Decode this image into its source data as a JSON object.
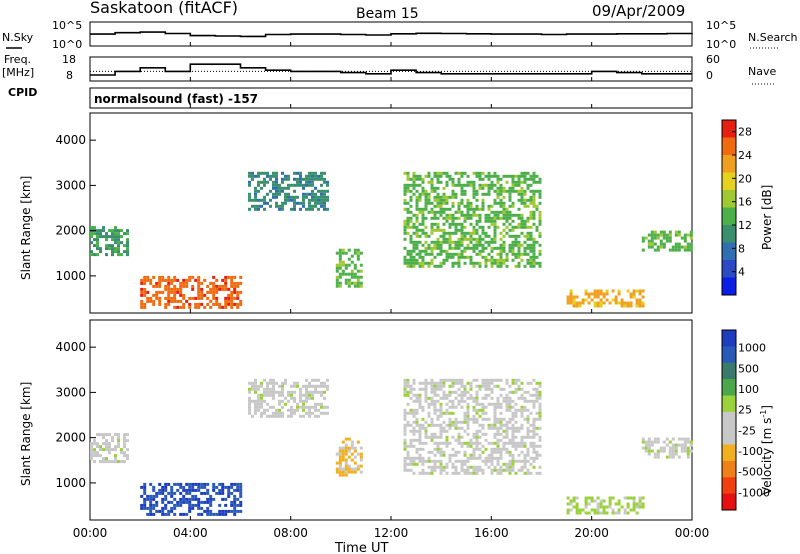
{
  "header": {
    "station": "Saskatoon (fitACF)",
    "beam": "Beam 15",
    "date": "09/Apr/2009"
  },
  "left_labels": {
    "nsky": "N.Sky",
    "freq_l1": "Freq.",
    "freq_l2": "[MHz]",
    "cpid": "CPID"
  },
  "right_labels": {
    "nsearch": "N.Search",
    "nave": "Nave"
  },
  "cpid_text": "normalsound (fast) -157",
  "noise_panel": {
    "yticks_left": [
      "10^5",
      "10^0"
    ],
    "yticks_right": [
      "10^5",
      "10^0"
    ]
  },
  "freq_panel": {
    "yticks_left": [
      "18",
      "8"
    ],
    "yticks_right": [
      "60",
      "0"
    ]
  },
  "x_axis": {
    "label": "Time UT",
    "ticks": [
      "00:00",
      "04:00",
      "08:00",
      "12:00",
      "16:00",
      "20:00",
      "00:00"
    ]
  },
  "y_axis": {
    "label": "Slant Range [km]",
    "ticks": [
      "4000",
      "3000",
      "2000",
      "1000"
    ]
  },
  "power_colorbar": {
    "label": "Power [dB]",
    "ticks": [
      "28",
      "24",
      "20",
      "16",
      "12",
      "8",
      "4"
    ],
    "colors": [
      "#0a1ee6",
      "#2a49c4",
      "#2f6eb0",
      "#3a8f6e",
      "#4caf4a",
      "#9fc832",
      "#e4d21e",
      "#f0a020",
      "#f06a10",
      "#e62010"
    ]
  },
  "velocity_colorbar": {
    "label": "Velocity [m s",
    "label_sup": "-1",
    "label_end": "]",
    "ticks": [
      "1000",
      "500",
      "100",
      "25",
      "-25",
      "-100",
      "-500",
      "-1000"
    ],
    "colors": [
      "#1e3cbe",
      "#2a5ab8",
      "#3a7a6a",
      "#4aa84a",
      "#9ad23c",
      "#c8c8c8",
      "#c8c8c8",
      "#f0b020",
      "#f08018",
      "#f04010",
      "#e61010"
    ]
  },
  "chart_data": [
    {
      "type": "line",
      "title": "N.Sky / N.Search",
      "x": "time_ut_hours",
      "xlim": [
        0,
        24
      ],
      "ylog": true,
      "ylim": [
        1,
        100000
      ],
      "series": [
        {
          "name": "N.Sky",
          "x": [
            0,
            1,
            2,
            3,
            4,
            5,
            6,
            7,
            8,
            9,
            10,
            11,
            12,
            13,
            14,
            15,
            16,
            17,
            18,
            19,
            20,
            21,
            22,
            23,
            24
          ],
          "values": [
            300,
            600,
            800,
            400,
            150,
            120,
            100,
            250,
            300,
            300,
            250,
            200,
            350,
            450,
            400,
            350,
            300,
            300,
            250,
            300,
            300,
            350,
            350,
            400,
            500
          ]
        },
        {
          "name": "N.Search",
          "x": [
            0,
            24
          ],
          "values": [
            1,
            1
          ]
        }
      ]
    },
    {
      "type": "line",
      "title": "Freq / Nave",
      "xlim": [
        0,
        24
      ],
      "ylim": [
        8,
        18
      ],
      "series": [
        {
          "name": "Freq. [MHz]",
          "x": [
            0,
            1,
            2,
            3,
            4,
            5,
            6,
            7,
            8,
            9,
            10,
            11,
            12,
            13,
            14,
            15,
            16,
            17,
            18,
            19,
            20,
            21,
            22,
            23,
            24
          ],
          "values": [
            10.5,
            12,
            13.5,
            12,
            15,
            15,
            13.5,
            12.5,
            12,
            12,
            11.5,
            11,
            12.5,
            11.5,
            11,
            11,
            11,
            11,
            11,
            11,
            12,
            11.5,
            11,
            11,
            11
          ]
        },
        {
          "name": "Nave",
          "x": [
            0,
            24
          ],
          "values": [
            12,
            12
          ]
        }
      ]
    },
    {
      "type": "heatmap",
      "title": "Power [dB]",
      "xlabel": "Time UT",
      "ylabel": "Slant Range [km]",
      "xlim": [
        0,
        24
      ],
      "ylim": [
        180,
        4600
      ],
      "zlim": [
        0,
        30
      ],
      "regions": [
        {
          "t": [
            0.0,
            1.5
          ],
          "r": [
            1500,
            2100
          ],
          "z": 12
        },
        {
          "t": [
            2.0,
            6.0
          ],
          "r": [
            300,
            1000
          ],
          "z": 26
        },
        {
          "t": [
            6.3,
            9.5
          ],
          "r": [
            2500,
            3300
          ],
          "z": 10
        },
        {
          "t": [
            9.8,
            10.8
          ],
          "r": [
            800,
            1600
          ],
          "z": 14
        },
        {
          "t": [
            12.5,
            18.0
          ],
          "r": [
            1200,
            3300
          ],
          "z": 14
        },
        {
          "t": [
            19.0,
            22.0
          ],
          "r": [
            350,
            700
          ],
          "z": 22
        },
        {
          "t": [
            22.0,
            24.0
          ],
          "r": [
            1600,
            2000
          ],
          "z": 14
        }
      ]
    },
    {
      "type": "heatmap",
      "title": "Velocity [m s-1]",
      "xlabel": "Time UT",
      "ylabel": "Slant Range [km]",
      "xlim": [
        0,
        24
      ],
      "ylim": [
        180,
        4600
      ],
      "zlim": [
        -1000,
        1000
      ],
      "regions": [
        {
          "t": [
            0.0,
            1.5
          ],
          "r": [
            1500,
            2100
          ],
          "z": 0
        },
        {
          "t": [
            2.0,
            6.0
          ],
          "r": [
            300,
            1000
          ],
          "z": 800
        },
        {
          "t": [
            6.3,
            9.5
          ],
          "r": [
            2500,
            3300
          ],
          "z": 0
        },
        {
          "t": [
            9.8,
            10.8
          ],
          "r": [
            1200,
            2000
          ],
          "z": -300
        },
        {
          "t": [
            12.5,
            18.0
          ],
          "r": [
            1200,
            3300
          ],
          "z": 0
        },
        {
          "t": [
            19.0,
            22.0
          ],
          "r": [
            350,
            700
          ],
          "z": 150
        },
        {
          "t": [
            22.0,
            24.0
          ],
          "r": [
            1600,
            2000
          ],
          "z": 0
        }
      ]
    }
  ]
}
